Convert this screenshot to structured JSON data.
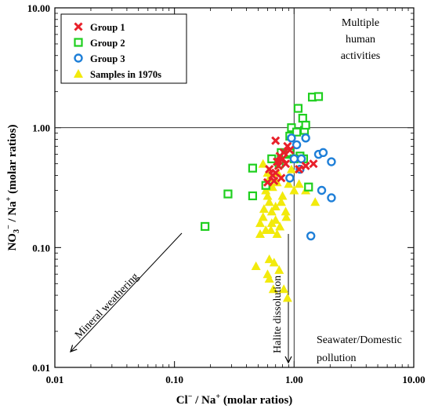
{
  "chart_data": {
    "type": "scatter",
    "x_scale": "log",
    "y_scale": "log",
    "xlim": [
      0.01,
      10
    ],
    "ylim": [
      0.01,
      10
    ],
    "x_ticks": [
      "0.01",
      "0.10",
      "1.00",
      "10.00"
    ],
    "y_ticks": [
      "0.01",
      "0.10",
      "1.00",
      "10.00"
    ],
    "xlabel": {
      "main": "Cl",
      "sup": "−",
      "mid": " / Na",
      "sup2": "+",
      "rest": " (molar ratios)"
    },
    "ylabel": {
      "main": "NO",
      "sub": "3",
      "sup": "−",
      "mid": " / Na",
      "sup2": "+",
      "rest": " (molar ratios)"
    },
    "reference_lines": {
      "x": 1.0,
      "y": 1.0
    },
    "legend_position": "top-left",
    "annotations": {
      "top_right": [
        "Multiple",
        "human",
        "activities"
      ],
      "bottom_right": [
        "Seawater/Domestic",
        "pollution"
      ],
      "mineral": "Mineral weathering",
      "halite": "Halite dissolution"
    },
    "series": [
      {
        "name": "Group 1",
        "marker": "x",
        "color": "#e8202a",
        "points": [
          [
            0.62,
            0.45
          ],
          [
            0.66,
            0.4
          ],
          [
            0.68,
            0.36
          ],
          [
            0.7,
            0.42
          ],
          [
            0.72,
            0.52
          ],
          [
            0.74,
            0.48
          ],
          [
            0.76,
            0.58
          ],
          [
            0.78,
            0.38
          ],
          [
            0.8,
            0.55
          ],
          [
            0.82,
            0.62
          ],
          [
            0.85,
            0.5
          ],
          [
            0.88,
            0.7
          ],
          [
            0.7,
            0.78
          ],
          [
            0.92,
            0.65
          ],
          [
            1.1,
            0.45
          ],
          [
            1.25,
            0.48
          ],
          [
            1.45,
            0.5
          ],
          [
            0.6,
            0.35
          ]
        ]
      },
      {
        "name": "Group 2",
        "marker": "square",
        "color": "#1fcf1f",
        "points": [
          [
            0.18,
            0.15
          ],
          [
            0.28,
            0.28
          ],
          [
            0.45,
            0.27
          ],
          [
            0.45,
            0.46
          ],
          [
            0.58,
            0.33
          ],
          [
            0.65,
            0.55
          ],
          [
            0.75,
            0.5
          ],
          [
            0.78,
            0.62
          ],
          [
            0.85,
            0.6
          ],
          [
            0.92,
            0.62
          ],
          [
            0.92,
            0.85
          ],
          [
            0.95,
            1.0
          ],
          [
            1.05,
            0.92
          ],
          [
            1.08,
            1.45
          ],
          [
            1.12,
            0.58
          ],
          [
            1.18,
            1.2
          ],
          [
            1.22,
            0.95
          ],
          [
            1.25,
            1.05
          ],
          [
            1.2,
            0.55
          ],
          [
            1.32,
            0.32
          ],
          [
            1.42,
            1.8
          ],
          [
            1.6,
            1.82
          ],
          [
            1.0,
            0.55
          ]
        ]
      },
      {
        "name": "Group 3",
        "marker": "circle",
        "color": "#1e7fd8",
        "points": [
          [
            0.92,
            0.38
          ],
          [
            0.95,
            0.82
          ],
          [
            1.0,
            0.55
          ],
          [
            1.05,
            0.72
          ],
          [
            1.15,
            0.55
          ],
          [
            1.25,
            0.82
          ],
          [
            1.38,
            0.125
          ],
          [
            1.6,
            0.6
          ],
          [
            1.7,
            0.3
          ],
          [
            1.75,
            0.62
          ],
          [
            2.05,
            0.52
          ],
          [
            2.05,
            0.26
          ],
          [
            1.12,
            0.45
          ]
        ]
      },
      {
        "name": "Samples in 1970s",
        "marker": "triangle",
        "color": "#f2ea0c",
        "points": [
          [
            0.48,
            0.07
          ],
          [
            0.52,
            0.13
          ],
          [
            0.52,
            0.16
          ],
          [
            0.55,
            0.18
          ],
          [
            0.55,
            0.5
          ],
          [
            0.56,
            0.21
          ],
          [
            0.58,
            0.14
          ],
          [
            0.58,
            0.3
          ],
          [
            0.6,
            0.27
          ],
          [
            0.6,
            0.06
          ],
          [
            0.62,
            0.055
          ],
          [
            0.62,
            0.08
          ],
          [
            0.62,
            0.24
          ],
          [
            0.62,
            0.38
          ],
          [
            0.64,
            0.14
          ],
          [
            0.65,
            0.16
          ],
          [
            0.65,
            0.2
          ],
          [
            0.66,
            0.32
          ],
          [
            0.67,
            0.045
          ],
          [
            0.68,
            0.075
          ],
          [
            0.7,
            0.22
          ],
          [
            0.7,
            0.17
          ],
          [
            0.72,
            0.13
          ],
          [
            0.72,
            0.35
          ],
          [
            0.73,
            0.42
          ],
          [
            0.75,
            0.065
          ],
          [
            0.76,
            0.15
          ],
          [
            0.78,
            0.24
          ],
          [
            0.8,
            0.27
          ],
          [
            0.82,
            0.045
          ],
          [
            0.85,
            0.2
          ],
          [
            0.86,
            0.18
          ],
          [
            0.88,
            0.038
          ],
          [
            0.9,
            0.34
          ],
          [
            0.95,
            0.45
          ],
          [
            1.0,
            0.3
          ],
          [
            1.1,
            0.34
          ],
          [
            1.25,
            0.3
          ],
          [
            1.5,
            0.24
          ],
          [
            0.6,
            0.42
          ]
        ]
      }
    ]
  }
}
